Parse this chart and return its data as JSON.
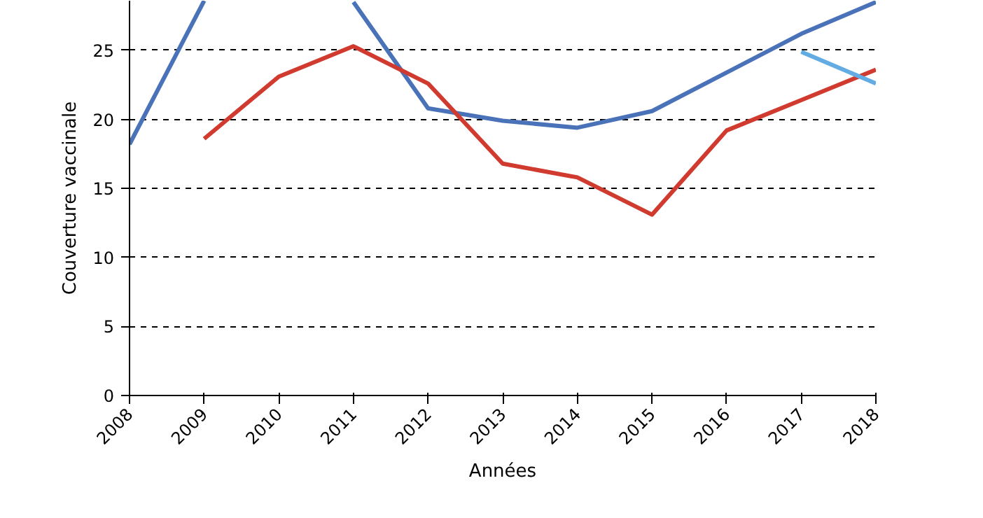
{
  "chart_data": {
    "type": "line",
    "xlabel": "Années",
    "ylabel": "Couverture vaccinale",
    "x": [
      2008,
      2009,
      2010,
      2011,
      2012,
      2013,
      2014,
      2015,
      2016,
      2017,
      2018
    ],
    "series": [
      {
        "color": "#4a72b8",
        "values": [
          18.2,
          28.6,
          null,
          28.5,
          20.8,
          19.9,
          19.4,
          20.6,
          23.4,
          26.2,
          28.5
        ]
      },
      {
        "color": "#d03a2f",
        "values": [
          null,
          18.6,
          23.1,
          25.3,
          22.6,
          16.8,
          15.8,
          13.1,
          19.2,
          21.4,
          23.6
        ]
      },
      {
        "color": "#62ace3",
        "values": [
          null,
          null,
          null,
          null,
          null,
          null,
          null,
          null,
          null,
          24.9,
          22.6
        ]
      }
    ],
    "xlim": [
      2008,
      2018
    ],
    "xticks": [
      2008,
      2009,
      2010,
      2011,
      2012,
      2013,
      2014,
      2015,
      2016,
      2017,
      2018
    ],
    "ylim": [
      0,
      28.6
    ],
    "yticks": [
      0,
      5,
      10,
      15,
      20,
      25
    ],
    "grid": "y",
    "line_style": "solid",
    "marker": "none"
  }
}
